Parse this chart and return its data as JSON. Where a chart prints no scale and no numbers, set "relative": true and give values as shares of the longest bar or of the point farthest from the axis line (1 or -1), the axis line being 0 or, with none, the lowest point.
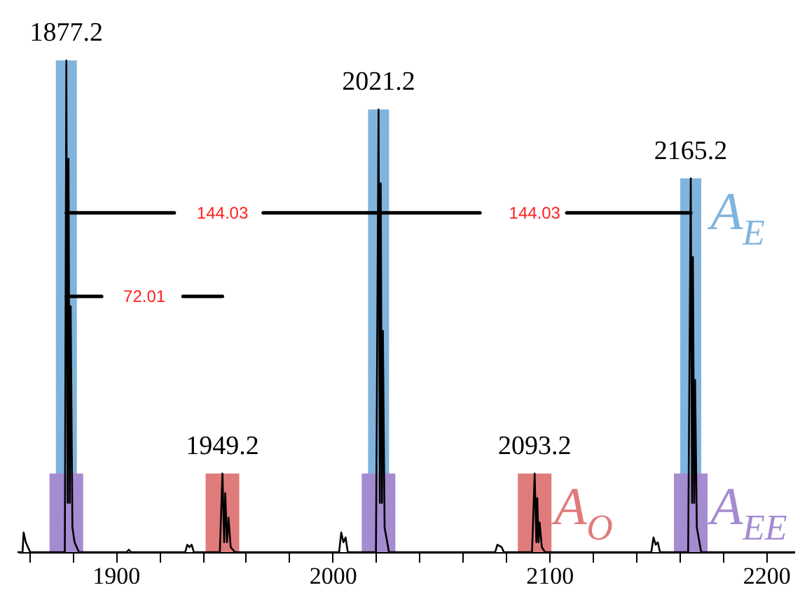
{
  "chart_data": {
    "type": "line",
    "relative": true,
    "xlim": [
      1855,
      2213
    ],
    "xticks": [
      {
        "value": 1860,
        "label": null
      },
      {
        "value": 1880,
        "label": null
      },
      1900,
      {
        "value": 1920,
        "label": null
      },
      {
        "value": 1940,
        "label": null
      },
      {
        "value": 1960,
        "label": null
      },
      {
        "value": 1980,
        "label": null
      },
      2000,
      {
        "value": 2020,
        "label": null
      },
      {
        "value": 2040,
        "label": null
      },
      {
        "value": 2060,
        "label": null
      },
      {
        "value": 2080,
        "label": null
      },
      2100,
      {
        "value": 2120,
        "label": null
      },
      {
        "value": 2140,
        "label": null
      },
      {
        "value": 2160,
        "label": null
      },
      {
        "value": 2180,
        "label": null
      },
      2200
    ],
    "series": [
      {
        "name": "A$_{E}$",
        "type": "bar",
        "color": "#80b4dd",
        "x": [
          1877.2,
          2021.2,
          2165.2
        ],
        "values": [
          1,
          0.9,
          0.76
        ]
      },
      {
        "name": "A$_{EE}$",
        "type": "bar",
        "color": "#a58bd0",
        "x": [
          1877.2,
          2021.2,
          2165.2
        ],
        "values": [
          0.16,
          0.16,
          0.16
        ]
      },
      {
        "name": "A$_{O}$",
        "type": "bar",
        "color": "#e07b7b",
        "x": [
          1949.2,
          2093.2
        ],
        "values": [
          0.16,
          0.16
        ]
      },
      {
        "color": "#000000",
        "x": [
          1855,
          1857,
          1857.5,
          1858.5,
          1859.5,
          1860.5,
          1876.5,
          1877.2,
          1877.8,
          1878.2,
          1878.8,
          1879.2,
          1880,
          1881,
          1883,
          1905,
          1906,
          1907,
          1932,
          1933,
          1934,
          1935,
          1936,
          1948,
          1949.2,
          1950,
          1950.5,
          1951.3,
          1952,
          1953,
          1955,
          2003,
          2004,
          2005,
          2006,
          2007,
          2020,
          2021.2,
          2021.8,
          2022.2,
          2022.8,
          2023.2,
          2024,
          2026,
          2075,
          2076,
          2078,
          2079,
          2092,
          2093.2,
          2094,
          2094.4,
          2095,
          2095.5,
          2096.5,
          2098,
          2147,
          2148,
          2149,
          2150,
          2151,
          2164,
          2165.2,
          2165.8,
          2166.2,
          2166.8,
          2167.2,
          2168,
          2170,
          2213
        ],
        "values": [
          0,
          0,
          0.04,
          0.02,
          0.01,
          0,
          0,
          1,
          0.1,
          0.8,
          0.1,
          0.5,
          0.05,
          0.02,
          0,
          0,
          0.005,
          0,
          0,
          0.015,
          0.01,
          0.015,
          0,
          0,
          0.16,
          0.02,
          0.12,
          0.02,
          0.07,
          0.01,
          0,
          0,
          0.04,
          0.02,
          0.03,
          0,
          0,
          0.9,
          0.1,
          0.75,
          0.1,
          0.45,
          0.05,
          0,
          0,
          0.015,
          0.01,
          0,
          0,
          0.16,
          0.02,
          0.11,
          0.02,
          0.06,
          0.01,
          0,
          0,
          0.03,
          0.015,
          0.02,
          0,
          0,
          0.76,
          0.1,
          0.6,
          0.1,
          0.35,
          0.05,
          0,
          0
        ]
      },
      {
        "color": "#000000",
        "x": [
          1877.2,
          1927,
          1949.2,
          1968,
          2068,
          2093.2,
          2108,
          2165.2
        ],
        "values": [
          0.69,
          0.69,
          null,
          0.69,
          0.69,
          null,
          0.69,
          0.69
        ]
      },
      {
        "color": "#000000",
        "x": [
          1877.2,
          1893.5,
          1913.2,
          1931,
          1949.2
        ],
        "values": [
          0.52,
          0.52,
          null,
          0.52,
          0.52
        ]
      }
    ],
    "annotations": [
      {
        "text": "1877.2",
        "x": 1877.2,
        "y": 1
      },
      {
        "text": "2021.2",
        "x": 2021.2,
        "y": 0.9
      },
      {
        "text": "2165.2",
        "x": 2165.2,
        "y": 0.76
      },
      {
        "text": "1949.2",
        "x": 1949.2,
        "y": 0.16
      },
      {
        "text": "2093.2",
        "x": 2093.2,
        "y": 0.16
      },
      "144.03",
      "144.03",
      "72.01"
    ]
  }
}
